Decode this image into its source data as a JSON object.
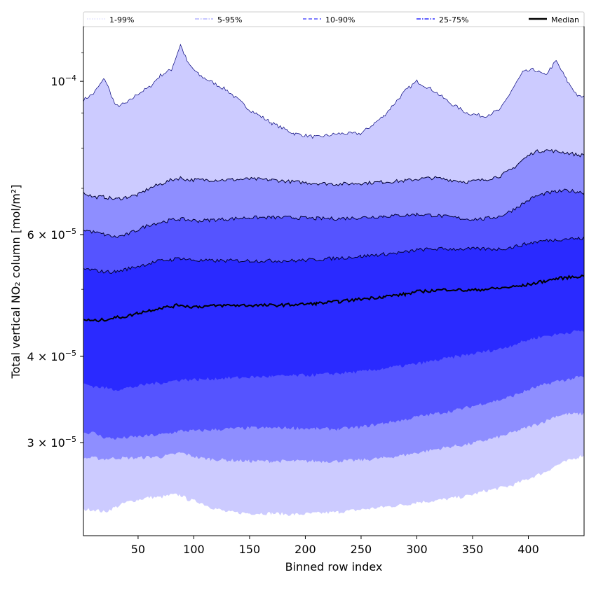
{
  "chart_data": {
    "type": "area",
    "xlabel": "Binned row index",
    "ylabel": "Total vertical NO₂ column [mol/m²]",
    "yscale": "log",
    "xlim": [
      1,
      450
    ],
    "ylim": [
      2.2e-05,
      0.00012
    ],
    "x_ticks": [
      50,
      100,
      150,
      200,
      250,
      300,
      350,
      400
    ],
    "y_ticks": [
      {
        "value": 0.0001,
        "mantissa": "",
        "exponent": "−4",
        "base": "10"
      },
      {
        "value": 6e-05,
        "mantissa": "6 × ",
        "exponent": "−5",
        "base": "10"
      },
      {
        "value": 4e-05,
        "mantissa": "4 × ",
        "exponent": "−5",
        "base": "10"
      },
      {
        "value": 3e-05,
        "mantissa": "3 × ",
        "exponent": "−5",
        "base": "10"
      }
    ],
    "legend_position": "top (spanning full width)",
    "legend": [
      {
        "label": "1-99%",
        "style": "dotted"
      },
      {
        "label": "5-95%",
        "style": "dashdot"
      },
      {
        "label": "10-90%",
        "style": "dashed"
      },
      {
        "label": "25-75%",
        "style": "dashdot"
      },
      {
        "label": "Median",
        "style": "solid"
      }
    ],
    "x": [
      1,
      10,
      20,
      30,
      40,
      50,
      60,
      70,
      80,
      88,
      95,
      105,
      115,
      130,
      150,
      170,
      190,
      210,
      230,
      250,
      270,
      290,
      300,
      315,
      330,
      345,
      360,
      375,
      385,
      395,
      405,
      415,
      425,
      435,
      445,
      450
    ],
    "bands": [
      {
        "name": "1-99%",
        "color": "#cccbff",
        "upper": [
          9.4e-05,
          9.6e-05,
          0.000101,
          9.2e-05,
          9.3e-05,
          9.6e-05,
          9.8e-05,
          0.000102,
          0.000104,
          0.000113,
          0.000106,
          0.000102,
          0.0001,
          9.7e-05,
          9.1e-05,
          8.7e-05,
          8.4e-05,
          8.3e-05,
          8.4e-05,
          8.4e-05,
          8.9e-05,
          9.7e-05,
          0.0001,
          9.7e-05,
          9.3e-05,
          9e-05,
          8.9e-05,
          9.1e-05,
          9.7e-05,
          0.000103,
          0.000104,
          0.000102,
          0.000107,
          0.0001,
          9.5e-05,
          9.5e-05
        ],
        "lower": [
          2.4e-05,
          2.4e-05,
          2.38e-05,
          2.42e-05,
          2.46e-05,
          2.48e-05,
          2.5e-05,
          2.5e-05,
          2.52e-05,
          2.52e-05,
          2.48e-05,
          2.46e-05,
          2.42e-05,
          2.38e-05,
          2.37e-05,
          2.37e-05,
          2.36e-05,
          2.37e-05,
          2.38e-05,
          2.4e-05,
          2.42e-05,
          2.44e-05,
          2.46e-05,
          2.47e-05,
          2.49e-05,
          2.51e-05,
          2.55e-05,
          2.58e-05,
          2.6e-05,
          2.64e-05,
          2.68e-05,
          2.72e-05,
          2.78e-05,
          2.82e-05,
          2.86e-05,
          2.88e-05
        ]
      },
      {
        "name": "5-95%",
        "color": "#8e8eff",
        "upper": [
          6.9e-05,
          6.8e-05,
          6.8e-05,
          6.75e-05,
          6.8e-05,
          6.85e-05,
          7e-05,
          7.1e-05,
          7.2e-05,
          7.25e-05,
          7.2e-05,
          7.2e-05,
          7.2e-05,
          7.2e-05,
          7.22e-05,
          7.2e-05,
          7.15e-05,
          7.12e-05,
          7.1e-05,
          7.12e-05,
          7.15e-05,
          7.18e-05,
          7.22e-05,
          7.25e-05,
          7.2e-05,
          7.15e-05,
          7.2e-05,
          7.3e-05,
          7.45e-05,
          7.7e-05,
          7.9e-05,
          7.95e-05,
          7.92e-05,
          7.88e-05,
          7.82e-05,
          7.82e-05
        ],
        "lower": [
          2.85e-05,
          2.85e-05,
          2.84e-05,
          2.85e-05,
          2.85e-05,
          2.85e-05,
          2.86e-05,
          2.86e-05,
          2.88e-05,
          2.9e-05,
          2.88e-05,
          2.85e-05,
          2.84e-05,
          2.83e-05,
          2.82e-05,
          2.82e-05,
          2.82e-05,
          2.82e-05,
          2.82e-05,
          2.83e-05,
          2.85e-05,
          2.88e-05,
          2.9e-05,
          2.93e-05,
          2.96e-05,
          2.98e-05,
          3.02e-05,
          3.06e-05,
          3.1e-05,
          3.14e-05,
          3.18e-05,
          3.22e-05,
          3.28e-05,
          3.3e-05,
          3.3e-05,
          3.3e-05
        ]
      },
      {
        "name": "10-90%",
        "color": "#5554ff",
        "upper": [
          6.1e-05,
          6.05e-05,
          6e-05,
          5.95e-05,
          6e-05,
          6.1e-05,
          6.2e-05,
          6.25e-05,
          6.3e-05,
          6.32e-05,
          6.3e-05,
          6.28e-05,
          6.3e-05,
          6.32e-05,
          6.35e-05,
          6.35e-05,
          6.35e-05,
          6.33e-05,
          6.33e-05,
          6.35e-05,
          6.38e-05,
          6.4e-05,
          6.42e-05,
          6.4e-05,
          6.36e-05,
          6.32e-05,
          6.32e-05,
          6.38e-05,
          6.5e-05,
          6.65e-05,
          6.8e-05,
          6.88e-05,
          6.92e-05,
          6.95e-05,
          6.92e-05,
          6.9e-05
        ],
        "lower": [
          3.1e-05,
          3.1e-05,
          3.05e-05,
          3.04e-05,
          3.05e-05,
          3.06e-05,
          3.07e-05,
          3.08e-05,
          3.1e-05,
          3.12e-05,
          3.12e-05,
          3.12e-05,
          3.13e-05,
          3.14e-05,
          3.15e-05,
          3.15e-05,
          3.15e-05,
          3.14e-05,
          3.14e-05,
          3.16e-05,
          3.2e-05,
          3.24e-05,
          3.27e-05,
          3.3e-05,
          3.33e-05,
          3.37e-05,
          3.42e-05,
          3.46e-05,
          3.5e-05,
          3.55e-05,
          3.6e-05,
          3.64e-05,
          3.68e-05,
          3.7e-05,
          3.73e-05,
          3.73e-05
        ]
      },
      {
        "name": "25-75%",
        "color": "#2a2aff",
        "upper": [
          5.35e-05,
          5.33e-05,
          5.3e-05,
          5.3e-05,
          5.35e-05,
          5.4e-05,
          5.45e-05,
          5.5e-05,
          5.52e-05,
          5.55e-05,
          5.52e-05,
          5.5e-05,
          5.5e-05,
          5.5e-05,
          5.5e-05,
          5.5e-05,
          5.5e-05,
          5.52e-05,
          5.55e-05,
          5.58e-05,
          5.62e-05,
          5.66e-05,
          5.7e-05,
          5.72e-05,
          5.72e-05,
          5.72e-05,
          5.72e-05,
          5.72e-05,
          5.75e-05,
          5.8e-05,
          5.85e-05,
          5.88e-05,
          5.9e-05,
          5.92e-05,
          5.92e-05,
          5.92e-05
        ],
        "lower": [
          3.65e-05,
          3.62e-05,
          3.6e-05,
          3.58e-05,
          3.6e-05,
          3.62e-05,
          3.65e-05,
          3.66e-05,
          3.68e-05,
          3.7e-05,
          3.7e-05,
          3.7e-05,
          3.71e-05,
          3.72e-05,
          3.73e-05,
          3.74e-05,
          3.75e-05,
          3.76e-05,
          3.78e-05,
          3.8e-05,
          3.84e-05,
          3.88e-05,
          3.9e-05,
          3.94e-05,
          3.98e-05,
          4.02e-05,
          4.06e-05,
          4.1e-05,
          4.15e-05,
          4.2e-05,
          4.25e-05,
          4.28e-05,
          4.3e-05,
          4.33e-05,
          4.35e-05,
          4.35e-05
        ]
      }
    ],
    "median": {
      "name": "Median",
      "color": "#000000",
      "values": [
        4.52e-05,
        4.5e-05,
        4.52e-05,
        4.55e-05,
        4.57e-05,
        4.62e-05,
        4.66e-05,
        4.7e-05,
        4.72e-05,
        4.75e-05,
        4.72e-05,
        4.72e-05,
        4.73e-05,
        4.74e-05,
        4.74e-05,
        4.74e-05,
        4.75e-05,
        4.77e-05,
        4.8e-05,
        4.84e-05,
        4.88e-05,
        4.92e-05,
        4.96e-05,
        4.98e-05,
        5e-05,
        4.98e-05,
        5e-05,
        5.02e-05,
        5.04e-05,
        5.06e-05,
        5.1e-05,
        5.14e-05,
        5.18e-05,
        5.2e-05,
        5.22e-05,
        5.22e-05
      ]
    }
  }
}
